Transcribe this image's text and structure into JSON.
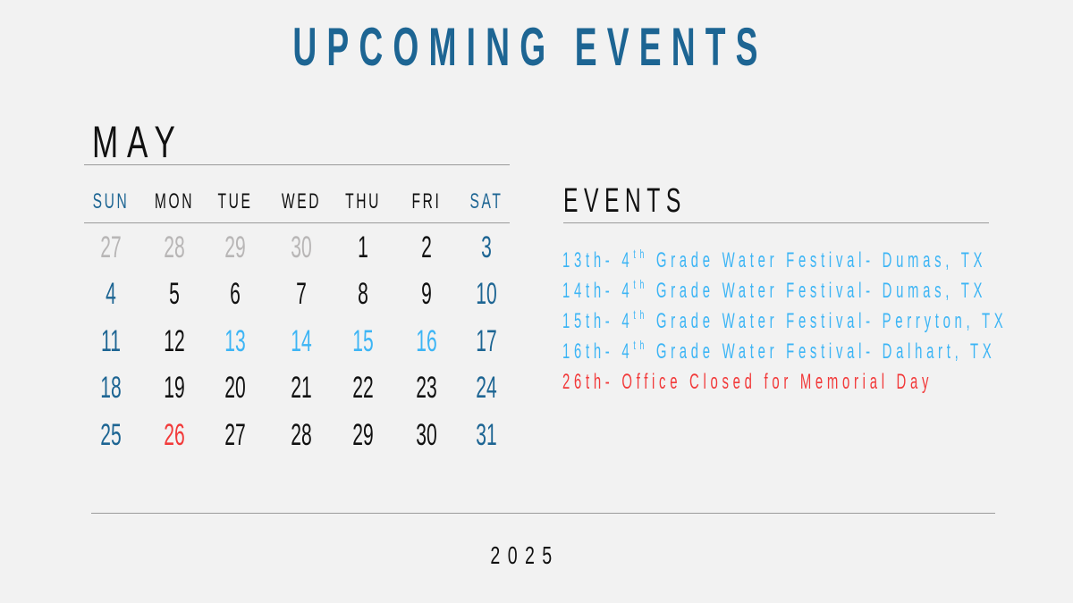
{
  "title": "UPCOMING EVENTS",
  "month": "MAY",
  "year": "2025",
  "colors": {
    "background": "#f2f2f2",
    "weekend": "#1d6593",
    "event": "#3db5f5",
    "holiday": "#f23a3a",
    "muted": "#b8b6b6",
    "text": "#111111"
  },
  "weekdays": [
    "SUN",
    "MON",
    "TUE",
    "WED",
    "THU",
    "FRI",
    "SAT"
  ],
  "weeks": [
    [
      {
        "d": "27",
        "s": "muted"
      },
      {
        "d": "28",
        "s": "muted"
      },
      {
        "d": "29",
        "s": "muted"
      },
      {
        "d": "30",
        "s": "muted"
      },
      {
        "d": "1",
        "s": "normal"
      },
      {
        "d": "2",
        "s": "normal"
      },
      {
        "d": "3",
        "s": "weekend"
      }
    ],
    [
      {
        "d": "4",
        "s": "weekend"
      },
      {
        "d": "5",
        "s": "normal"
      },
      {
        "d": "6",
        "s": "normal"
      },
      {
        "d": "7",
        "s": "normal"
      },
      {
        "d": "8",
        "s": "normal"
      },
      {
        "d": "9",
        "s": "normal"
      },
      {
        "d": "10",
        "s": "weekend"
      }
    ],
    [
      {
        "d": "11",
        "s": "weekend"
      },
      {
        "d": "12",
        "s": "normal"
      },
      {
        "d": "13",
        "s": "event"
      },
      {
        "d": "14",
        "s": "event"
      },
      {
        "d": "15",
        "s": "event"
      },
      {
        "d": "16",
        "s": "event"
      },
      {
        "d": "17",
        "s": "weekend"
      }
    ],
    [
      {
        "d": "18",
        "s": "weekend"
      },
      {
        "d": "19",
        "s": "normal"
      },
      {
        "d": "20",
        "s": "normal"
      },
      {
        "d": "21",
        "s": "normal"
      },
      {
        "d": "22",
        "s": "normal"
      },
      {
        "d": "23",
        "s": "normal"
      },
      {
        "d": "24",
        "s": "weekend"
      }
    ],
    [
      {
        "d": "25",
        "s": "weekend"
      },
      {
        "d": "26",
        "s": "holiday"
      },
      {
        "d": "27",
        "s": "normal"
      },
      {
        "d": "28",
        "s": "normal"
      },
      {
        "d": "29",
        "s": "normal"
      },
      {
        "d": "30",
        "s": "normal"
      },
      {
        "d": "31",
        "s": "weekend"
      }
    ]
  ],
  "events_heading": "EVENTS",
  "events": [
    {
      "date": "13th- ",
      "num": "4",
      "sup": "th",
      "text": " Grade Water Festival- Dumas, TX",
      "type": "event"
    },
    {
      "date": "14th- ",
      "num": "4",
      "sup": "th",
      "text": " Grade Water Festival- Dumas, TX",
      "type": "event"
    },
    {
      "date": "15th- ",
      "num": "4",
      "sup": "th",
      "text": " Grade Water Festival- Perryton, TX",
      "type": "event"
    },
    {
      "date": "16th- ",
      "num": "4",
      "sup": "th",
      "text": " Grade Water Festival- Dalhart, TX",
      "type": "event"
    },
    {
      "date": "26th- ",
      "num": "",
      "sup": "",
      "text": "Office Closed for Memorial Day",
      "type": "holiday"
    }
  ]
}
